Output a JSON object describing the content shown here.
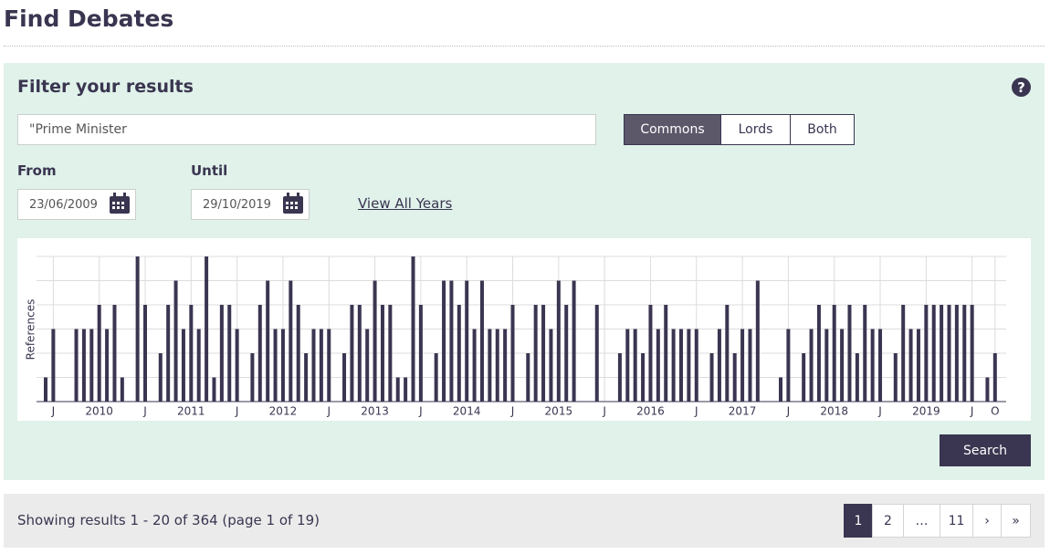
{
  "header": {
    "title": "Find Debates"
  },
  "filter": {
    "title": "Filter your results",
    "help": "?",
    "search": "\"Prime Minister",
    "houses": [
      "Commons",
      "Lords",
      "Both"
    ],
    "from_label": "From",
    "from_value": "23/06/2009",
    "until_label": "Until",
    "until_value": "29/10/2019",
    "all_years": "View All Years",
    "search_button": "Search"
  },
  "chart_data": {
    "type": "bar",
    "ylabel": "References",
    "color": "#3b3551",
    "grid": true,
    "ylim": [
      0,
      6
    ],
    "yticks": [
      0,
      1,
      2,
      3,
      4,
      5,
      6
    ],
    "categories": [
      null,
      "J",
      null,
      null,
      null,
      null,
      null,
      "2010",
      null,
      null,
      null,
      null,
      null,
      "J",
      null,
      null,
      null,
      null,
      null,
      "2011",
      null,
      null,
      null,
      null,
      null,
      "J",
      null,
      null,
      null,
      null,
      null,
      "2012",
      null,
      null,
      null,
      null,
      null,
      "J",
      null,
      null,
      null,
      null,
      null,
      "2013",
      null,
      null,
      null,
      null,
      null,
      "J",
      null,
      null,
      null,
      null,
      null,
      "2014",
      null,
      null,
      null,
      null,
      null,
      "J",
      null,
      null,
      null,
      null,
      null,
      "2015",
      null,
      null,
      null,
      null,
      null,
      "J",
      null,
      null,
      null,
      null,
      null,
      "2016",
      null,
      null,
      null,
      null,
      null,
      "J",
      null,
      null,
      null,
      null,
      null,
      "2017",
      null,
      null,
      null,
      null,
      null,
      "J",
      null,
      null,
      null,
      null,
      null,
      "2018",
      null,
      null,
      null,
      null,
      null,
      "J",
      null,
      null,
      null,
      null,
      null,
      "2019",
      null,
      null,
      null,
      null,
      null,
      "J",
      null,
      null,
      "O"
    ],
    "values": [
      1,
      3,
      0,
      0,
      3,
      3,
      3,
      4,
      3,
      4,
      1,
      0,
      6,
      4,
      0,
      2,
      4,
      5,
      3,
      4,
      3,
      6,
      1,
      4,
      4,
      3,
      0,
      2,
      4,
      5,
      3,
      3,
      5,
      4,
      2,
      3,
      3,
      3,
      0,
      2,
      4,
      4,
      3,
      5,
      4,
      4,
      1,
      1,
      6,
      4,
      0,
      2,
      5,
      5,
      4,
      5,
      3,
      5,
      3,
      3,
      3,
      4,
      0,
      2,
      4,
      4,
      3,
      5,
      4,
      5,
      0,
      0,
      4,
      0,
      0,
      2,
      3,
      3,
      2,
      4,
      3,
      4,
      3,
      3,
      3,
      3,
      0,
      2,
      3,
      4,
      2,
      3,
      3,
      5,
      0,
      0,
      1,
      3,
      0,
      2,
      3,
      4,
      3,
      4,
      3,
      4,
      2,
      4,
      3,
      3,
      0,
      2,
      4,
      3,
      3,
      4,
      4,
      4,
      4,
      4,
      4,
      4,
      0,
      1,
      2
    ]
  },
  "results": {
    "summary": "Showing results 1 - 20 of 364 (page 1 of 19)",
    "pages": [
      "1",
      "2",
      "…",
      "11",
      "›",
      "»"
    ]
  }
}
